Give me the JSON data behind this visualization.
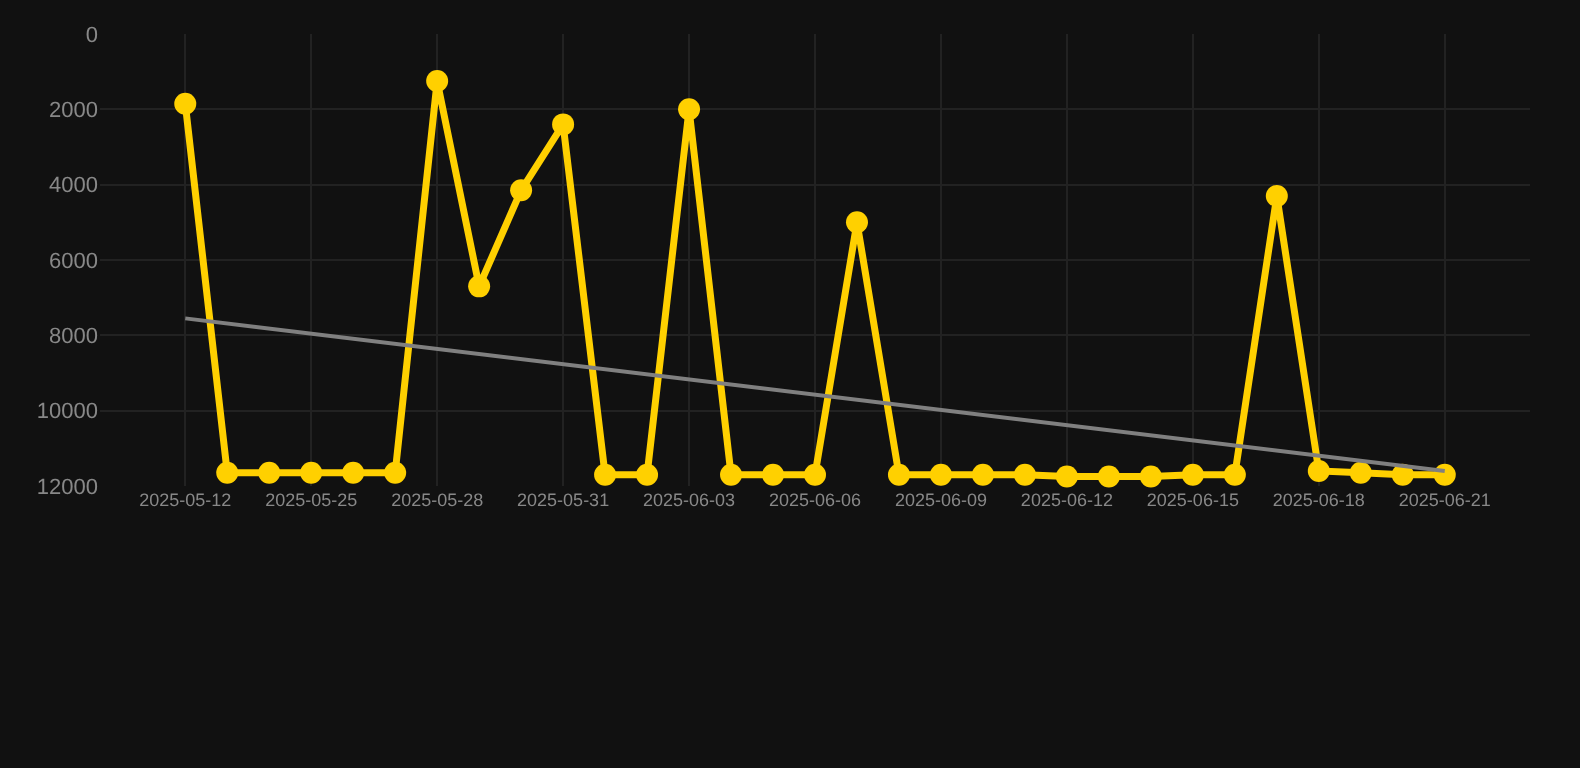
{
  "chart_data": {
    "type": "line",
    "categories": [
      "2025-05-12",
      null,
      null,
      "2025-05-25",
      null,
      null,
      "2025-05-28",
      null,
      null,
      "2025-05-31",
      null,
      null,
      "2025-06-03",
      null,
      null,
      "2025-06-06",
      null,
      null,
      "2025-06-09",
      null,
      null,
      "2025-06-12",
      null,
      null,
      "2025-06-15",
      null,
      null,
      "2025-06-18",
      null,
      null,
      "2025-06-21"
    ],
    "series": [
      {
        "color": "#ffd000",
        "marker": "circle",
        "values": [
          1850,
          11650,
          11650,
          11650,
          11650,
          11650,
          1250,
          6700,
          4150,
          2400,
          11700,
          11700,
          2000,
          11700,
          11700,
          11700,
          5000,
          11700,
          11700,
          11700,
          11700,
          11750,
          11750,
          11750,
          11700,
          11700,
          4300,
          11600,
          11650,
          11700,
          11700
        ]
      },
      {
        "color": "#808080",
        "marker": "none",
        "values": [
          7550,
          null,
          null,
          null,
          null,
          null,
          null,
          null,
          null,
          null,
          null,
          null,
          null,
          null,
          null,
          null,
          null,
          null,
          null,
          null,
          null,
          null,
          null,
          null,
          null,
          null,
          null,
          null,
          null,
          null,
          11600
        ]
      }
    ],
    "ylim": [
      12000,
      0
    ],
    "yticks": [
      0,
      2000,
      4000,
      6000,
      8000,
      10000,
      12000
    ],
    "grid": true,
    "line_style": "solid"
  }
}
